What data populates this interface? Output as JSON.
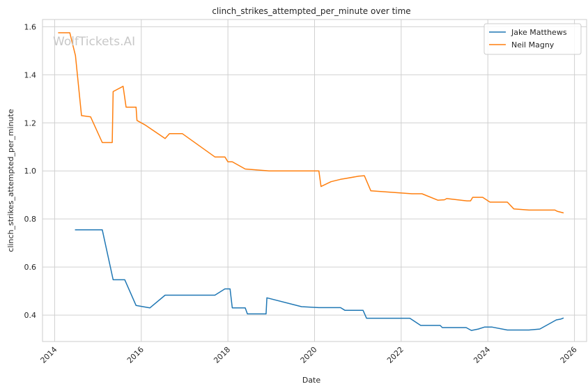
{
  "chart_data": {
    "type": "line",
    "title": "clinch_strikes_attempted_per_minute over time",
    "xlabel": "Date",
    "ylabel": "clinch_strikes_attempted_per_minute",
    "x_ticks": [
      2014,
      2016,
      2018,
      2020,
      2022,
      2024,
      2026
    ],
    "x_tick_labels": [
      "2014",
      "2016",
      "2018",
      "2020",
      "2022",
      "2024",
      "2026"
    ],
    "y_ticks": [
      0.4,
      0.6,
      0.8,
      1.0,
      1.2,
      1.4,
      1.6
    ],
    "y_tick_labels": [
      "0.4",
      "0.6",
      "0.8",
      "1.0",
      "1.2",
      "1.4",
      "1.6"
    ],
    "xlim": [
      2013.72,
      2026.28
    ],
    "ylim": [
      0.29,
      1.63
    ],
    "grid": true,
    "legend_position": "top-right",
    "watermark": "WolfTickets.AI",
    "series": [
      {
        "name": "Jake Matthews",
        "color": "#1f77b4",
        "x": [
          2014.47,
          2015.1,
          2015.35,
          2015.62,
          2015.88,
          2016.2,
          2016.55,
          2017.0,
          2017.7,
          2017.93,
          2018.05,
          2018.1,
          2018.4,
          2018.45,
          2018.88,
          2018.9,
          2019.7,
          2020.1,
          2020.6,
          2020.7,
          2021.0,
          2021.12,
          2021.2,
          2022.2,
          2022.45,
          2022.9,
          2022.95,
          2023.5,
          2023.62,
          2023.78,
          2023.92,
          2024.1,
          2024.45,
          2024.95,
          2025.2,
          2025.58,
          2025.68,
          2025.75
        ],
        "y": [
          0.755,
          0.755,
          0.547,
          0.547,
          0.44,
          0.43,
          0.483,
          0.483,
          0.483,
          0.509,
          0.509,
          0.43,
          0.43,
          0.405,
          0.405,
          0.472,
          0.435,
          0.431,
          0.431,
          0.42,
          0.42,
          0.42,
          0.387,
          0.387,
          0.357,
          0.357,
          0.348,
          0.348,
          0.336,
          0.342,
          0.35,
          0.35,
          0.338,
          0.338,
          0.342,
          0.38,
          0.383,
          0.388
        ]
      },
      {
        "name": "Neil Magny",
        "color": "#ff7f0e",
        "x": [
          2014.08,
          2014.35,
          2014.48,
          2014.62,
          2014.83,
          2015.1,
          2015.33,
          2015.35,
          2015.58,
          2015.65,
          2015.88,
          2015.9,
          2016.1,
          2016.55,
          2016.65,
          2016.95,
          2017.7,
          2017.93,
          2018.0,
          2018.1,
          2018.4,
          2018.95,
          2020.1,
          2020.15,
          2020.38,
          2020.6,
          2020.7,
          2021.02,
          2021.15,
          2021.3,
          2022.25,
          2022.48,
          2022.85,
          2023.0,
          2023.05,
          2023.52,
          2023.6,
          2023.65,
          2023.88,
          2024.05,
          2024.45,
          2024.6,
          2024.95,
          2025.55,
          2025.6,
          2025.75
        ],
        "y": [
          1.575,
          1.575,
          1.48,
          1.23,
          1.225,
          1.118,
          1.118,
          1.33,
          1.352,
          1.265,
          1.265,
          1.21,
          1.19,
          1.135,
          1.155,
          1.155,
          1.058,
          1.058,
          1.038,
          1.038,
          1.008,
          1.0,
          1.0,
          0.935,
          0.955,
          0.965,
          0.968,
          0.978,
          0.98,
          0.917,
          0.905,
          0.905,
          0.878,
          0.88,
          0.885,
          0.875,
          0.875,
          0.89,
          0.89,
          0.87,
          0.87,
          0.842,
          0.837,
          0.837,
          0.832,
          0.825
        ]
      }
    ]
  }
}
